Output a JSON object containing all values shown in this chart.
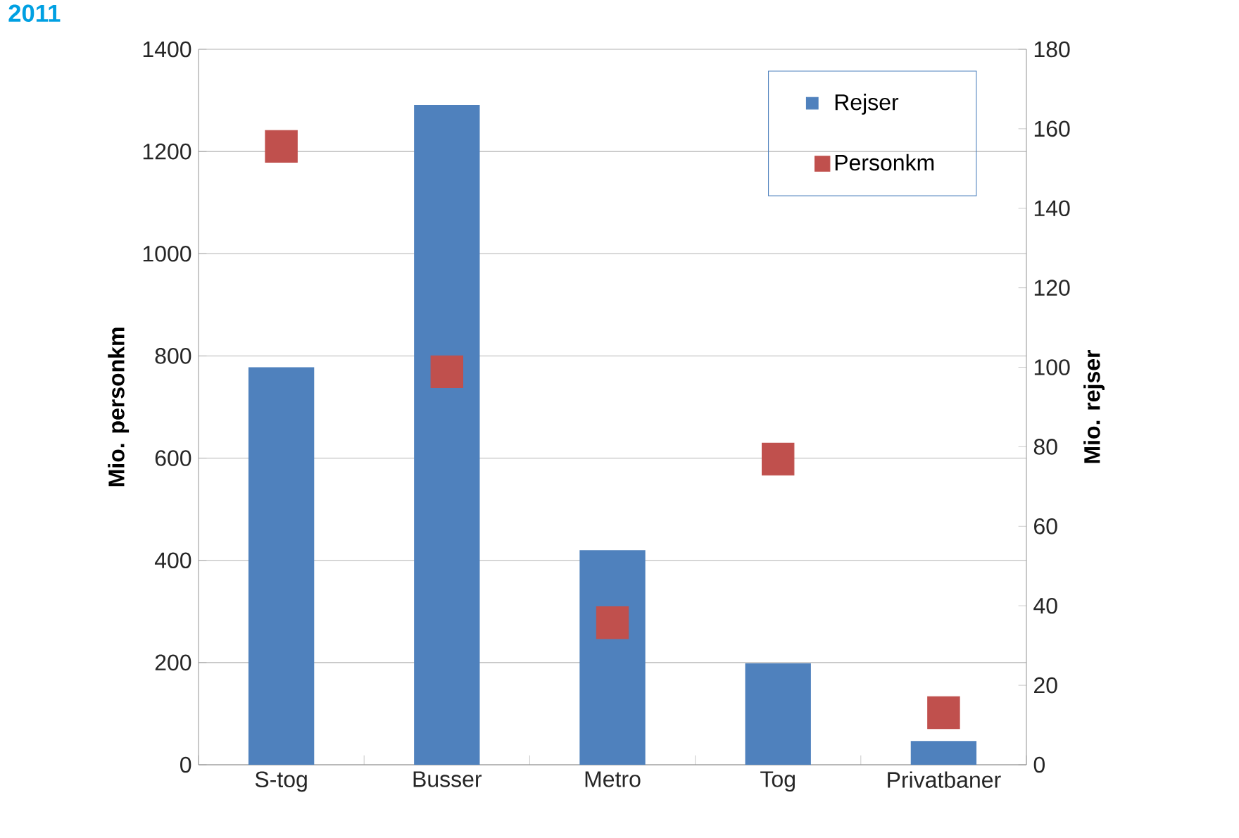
{
  "chart_data": {
    "type": "bar",
    "title": "2011",
    "categories": [
      "S-tog",
      "Busser",
      "Metro",
      "Tog",
      "Privatbaner"
    ],
    "ylabel": "Mio. personkm",
    "y2label": "Mio. rejser",
    "ylim": [
      0,
      1400
    ],
    "yticks": [
      0,
      200,
      400,
      600,
      800,
      1000,
      1200,
      1400
    ],
    "y2lim": [
      0,
      180
    ],
    "y2ticks": [
      0,
      20,
      40,
      60,
      80,
      100,
      120,
      140,
      160,
      180
    ],
    "grid": "y",
    "legend": "top right",
    "series": [
      {
        "name": "Rejser",
        "axis": "y2",
        "color": "#4f81bd",
        "values": [
          100,
          166,
          54,
          25.5,
          6
        ]
      },
      {
        "name": "Personkm",
        "type": "scatter",
        "marker": "square",
        "color": "#c0504d",
        "values": [
          1210,
          769,
          278,
          598,
          102
        ]
      }
    ]
  }
}
